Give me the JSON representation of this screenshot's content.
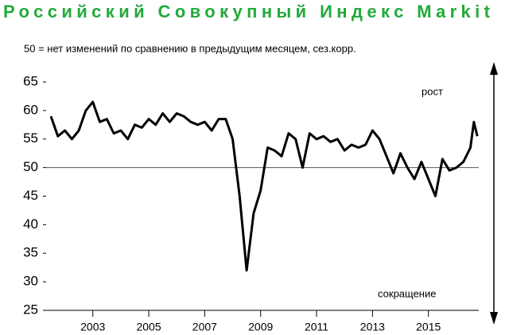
{
  "chart_data": {
    "type": "line",
    "title": "Российский Совокупный Индекс Markit",
    "subtitle": "50 = нет изменений по сравнению в предыдущим месяцем, сез.корр.",
    "annotations": [
      "рост",
      "сокращение"
    ],
    "reference_line": 50,
    "color": "#000000",
    "x": [
      2001.5,
      2001.75,
      2002,
      2002.25,
      2002.5,
      2002.75,
      2003,
      2003.25,
      2003.5,
      2003.75,
      2004,
      2004.25,
      2004.5,
      2004.75,
      2005,
      2005.25,
      2005.5,
      2005.75,
      2006,
      2006.25,
      2006.5,
      2006.75,
      2007,
      2007.25,
      2007.5,
      2007.75,
      2008,
      2008.25,
      2008.5,
      2008.75,
      2009,
      2009.25,
      2009.5,
      2009.75,
      2010,
      2010.25,
      2010.5,
      2010.75,
      2011,
      2011.25,
      2011.5,
      2011.75,
      2012,
      2012.25,
      2012.5,
      2012.75,
      2013,
      2013.25,
      2013.5,
      2013.75,
      2014,
      2014.25,
      2014.5,
      2014.75,
      2015,
      2015.25,
      2015.5,
      2015.75,
      2016,
      2016.25,
      2016.5,
      2016.625,
      2016.75
    ],
    "values": [
      59,
      55.5,
      56.5,
      55,
      56.5,
      60,
      61.5,
      58,
      58.5,
      56,
      56.5,
      55,
      57.5,
      57,
      58.5,
      57.5,
      59.5,
      58,
      59.5,
      59,
      58,
      57.5,
      58,
      56.5,
      58.5,
      58.5,
      55,
      45,
      32,
      42,
      46,
      53.5,
      53,
      52,
      56,
      55,
      50,
      56,
      55,
      55.5,
      54.5,
      55,
      53,
      54,
      53.5,
      54,
      56.5,
      55,
      52,
      49,
      52.5,
      50,
      48,
      51,
      48,
      45,
      51.5,
      49.5,
      50,
      51,
      53.5,
      58,
      55.5
    ],
    "xlim": [
      2001.33,
      2016.8
    ],
    "xticks": [
      2003,
      2005,
      2007,
      2009,
      2011,
      2013,
      2015
    ],
    "ylim": [
      25,
      65
    ],
    "yticks": [
      25,
      30,
      35,
      40,
      45,
      50,
      55,
      60,
      65
    ]
  }
}
